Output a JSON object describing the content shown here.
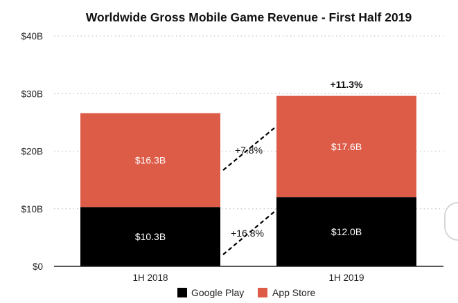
{
  "chart_data": {
    "type": "bar",
    "stacked": true,
    "title": "Worldwide Gross Mobile Game Revenue - First Half 2019",
    "xlabel": "",
    "ylabel": "",
    "categories": [
      "1H 2018",
      "1H 2019"
    ],
    "ylim": [
      0,
      40
    ],
    "yticks": [
      0,
      10,
      20,
      30,
      40
    ],
    "ytick_labels": [
      "$0",
      "$10B",
      "$20B",
      "$30B",
      "$40B"
    ],
    "grid": "horizontal dotted",
    "legend_position": "bottom",
    "series": [
      {
        "name": "Google Play",
        "color": "#000000",
        "values": [
          10.3,
          12.0
        ],
        "labels": [
          "$10.3B",
          "$12.0B"
        ]
      },
      {
        "name": "App Store",
        "color": "#dc5c48",
        "values": [
          16.3,
          17.6
        ],
        "labels": [
          "$16.3B",
          "$17.6B"
        ]
      }
    ],
    "annotations": {
      "total_growth": "+11.3%",
      "google_play_growth": "+16.8%",
      "app_store_growth": "+7.8%"
    }
  }
}
